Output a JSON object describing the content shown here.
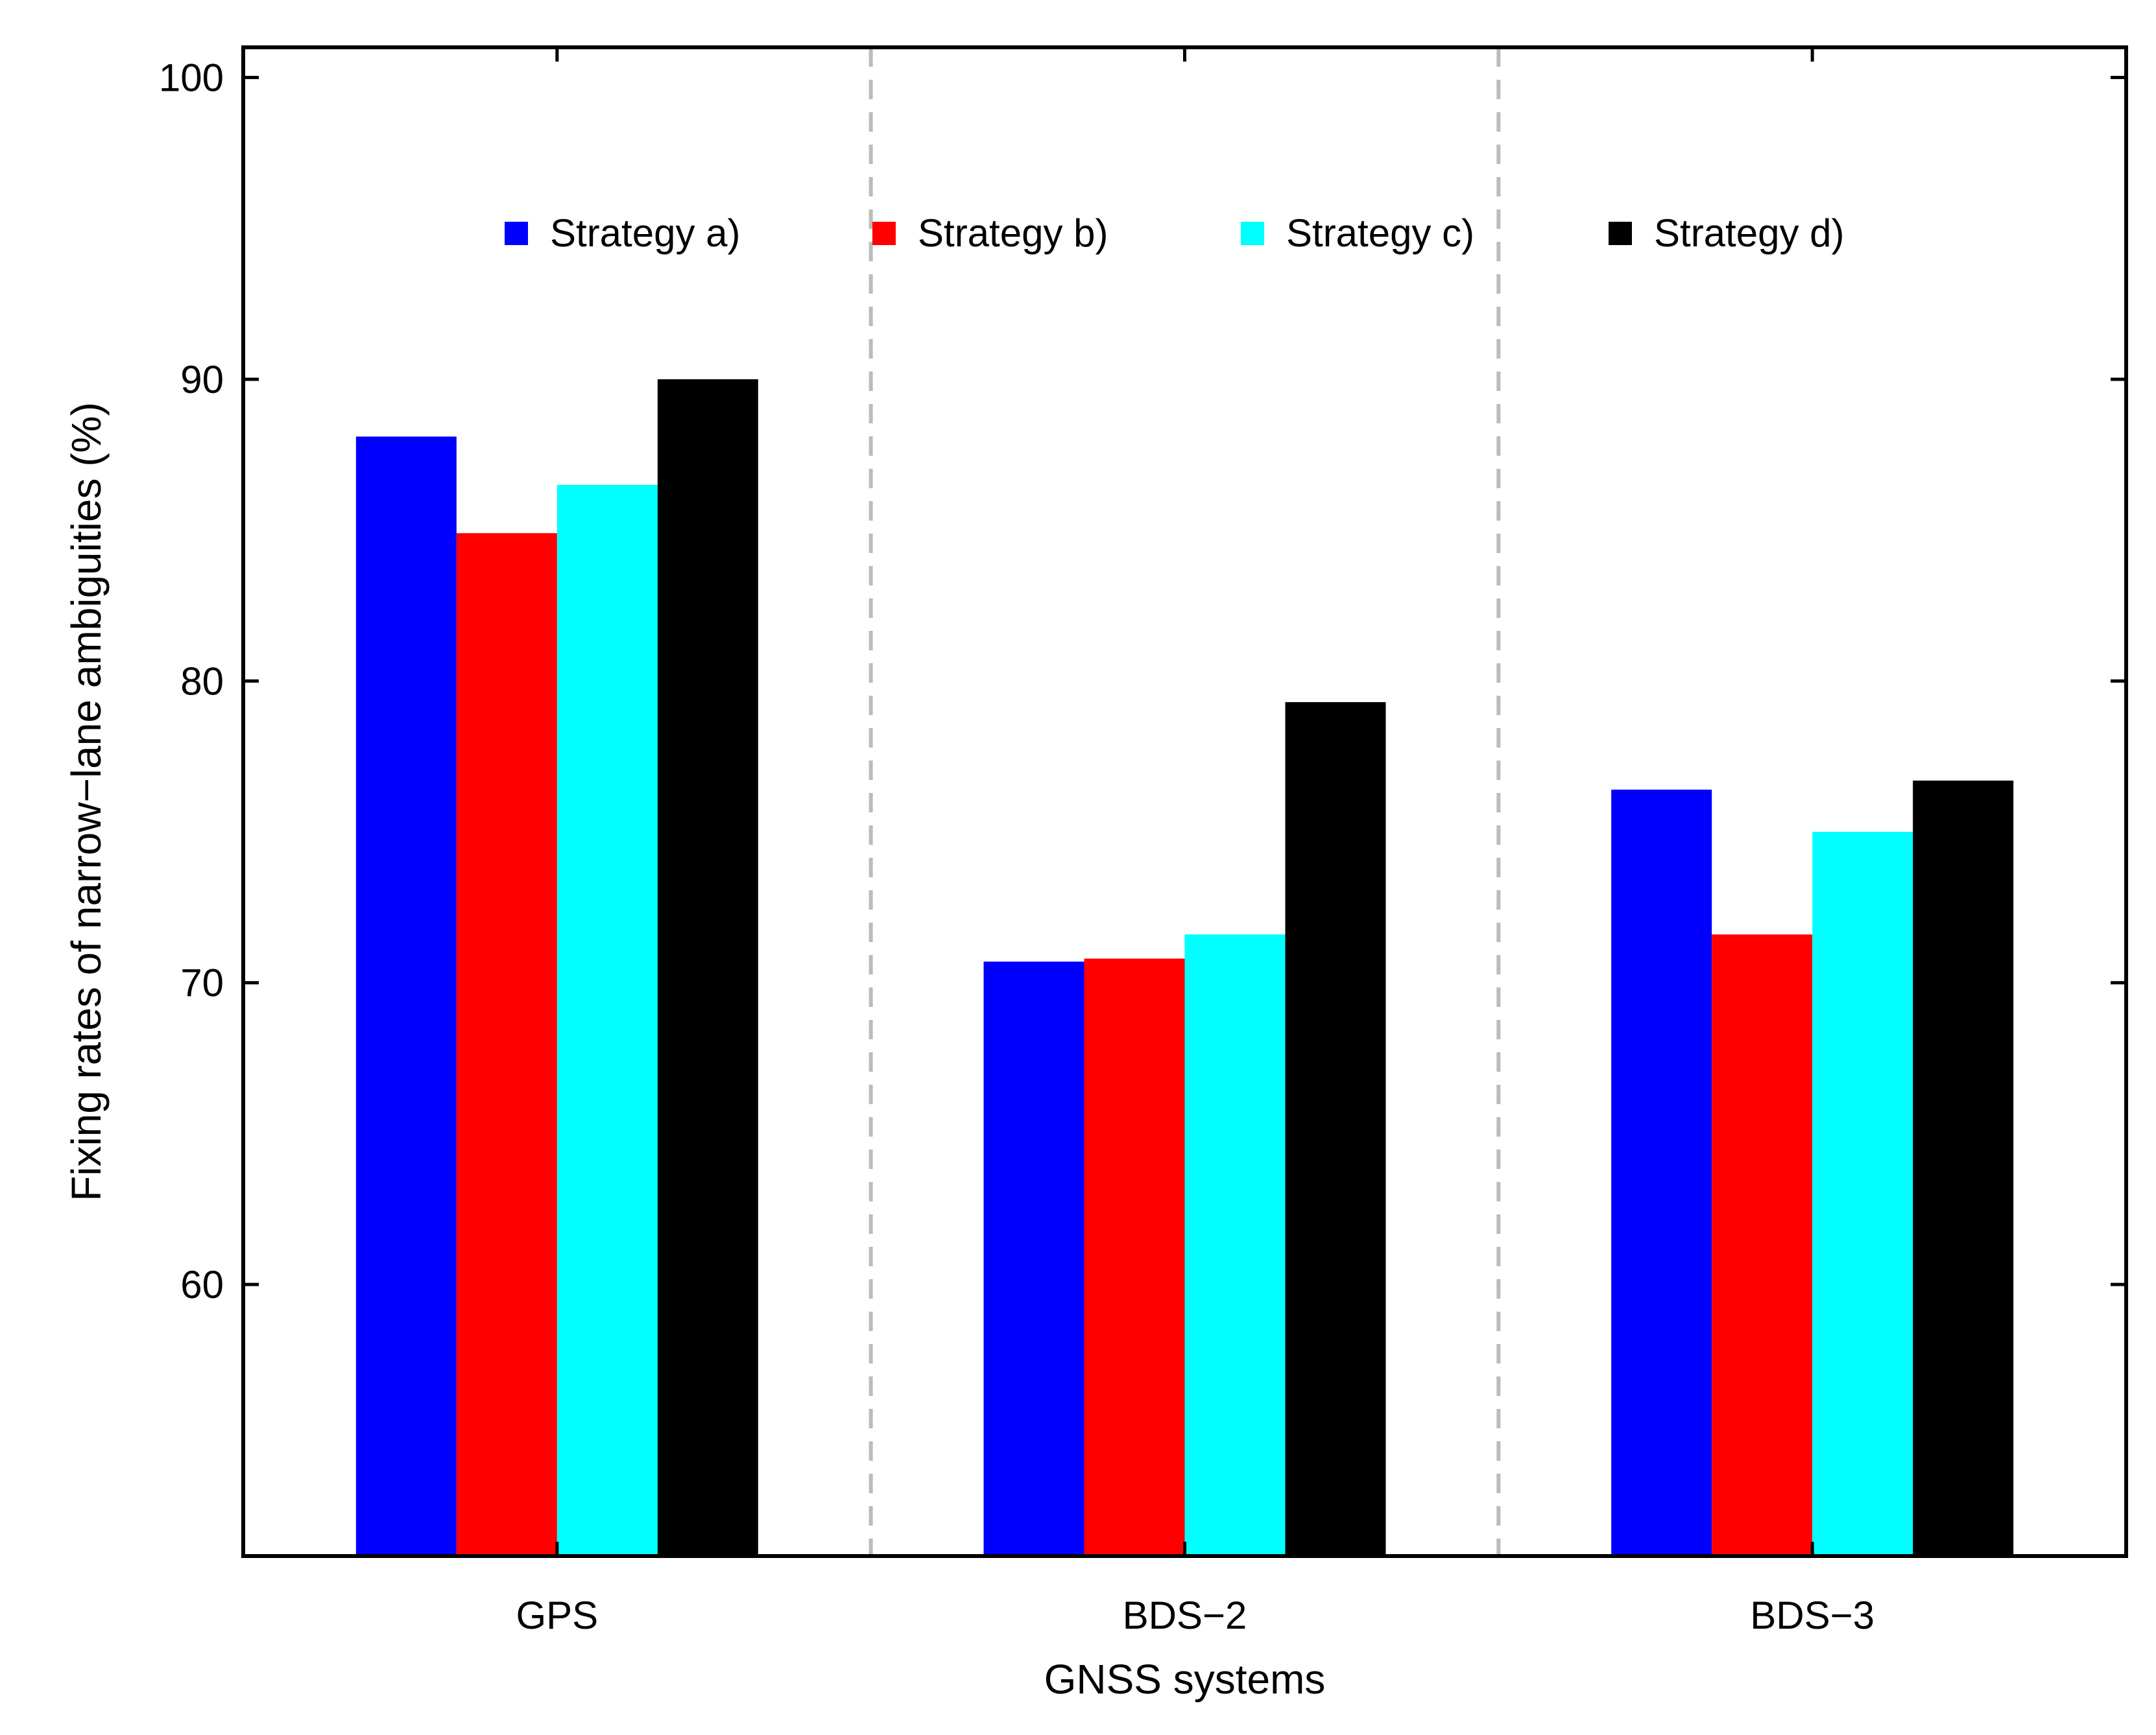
{
  "chart_data": {
    "type": "bar",
    "title": "",
    "xlabel": "GNSS systems",
    "ylabel": "Fixing rates of narrow−lane ambiguities (%)",
    "categories": [
      "GPS",
      "BDS−2",
      "BDS−3"
    ],
    "series": [
      {
        "name": "Strategy a)",
        "color": "#0000ff",
        "values": [
          88.1,
          70.7,
          76.4
        ]
      },
      {
        "name": "Strategy b)",
        "color": "#ff0000",
        "values": [
          84.9,
          70.8,
          71.6
        ]
      },
      {
        "name": "Strategy c)",
        "color": "#00ffff",
        "values": [
          86.5,
          71.6,
          75.0
        ]
      },
      {
        "name": "Strategy d)",
        "color": "#000000",
        "values": [
          90.0,
          79.3,
          76.7
        ]
      }
    ],
    "ylim": [
      51,
      101
    ],
    "yticks": [
      60,
      70,
      80,
      90,
      100
    ],
    "ytick_labels": [
      "60",
      "70",
      "80",
      "90",
      "100"
    ],
    "grid": false,
    "group_separators": "dashed gray",
    "separator_color": "#bbbbbb",
    "legend_position": "top"
  }
}
